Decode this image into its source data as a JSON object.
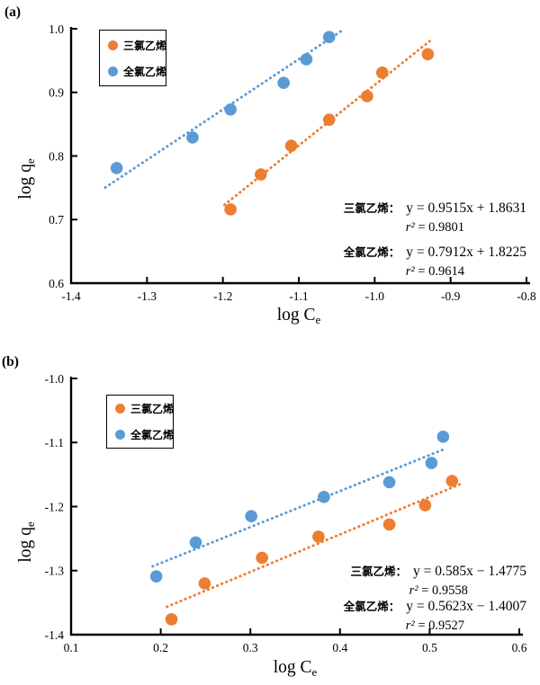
{
  "figure": {
    "background": "#ffffff",
    "series_colors": {
      "trichloroethylene": "#ED7D31",
      "perchloroethylene": "#5B9BD5"
    }
  },
  "chart_data": [
    {
      "panel_label": "(a)",
      "type": "scatter",
      "xlabel": {
        "main": "log C",
        "sub": "e"
      },
      "ylabel": {
        "main": "log q",
        "sub": "e"
      },
      "xlim": [
        -1.4,
        -0.8
      ],
      "ylim": [
        0.6,
        1.0
      ],
      "xticks": [
        "-1.4",
        "-1.3",
        "-1.2",
        "-1.1",
        "-1.0",
        "-0.9",
        "-0.8"
      ],
      "yticks": [
        "1.0",
        "0.9",
        "0.8",
        "0.7",
        "0.6"
      ],
      "grid": false,
      "legend_position": "upper-left-inside",
      "series": [
        {
          "name": "三氯乙烯",
          "color": "#ED7D31",
          "points": [
            [
              -1.19,
              0.716
            ],
            [
              -1.15,
              0.771
            ],
            [
              -1.11,
              0.816
            ],
            [
              -1.06,
              0.857
            ],
            [
              -1.01,
              0.894
            ],
            [
              -0.99,
              0.931
            ],
            [
              -0.93,
              0.96
            ]
          ],
          "trend": {
            "style": "dotted",
            "slope": 0.9515,
            "intercept": 1.8631,
            "range": [
              -1.198,
              -0.927
            ]
          }
        },
        {
          "name": "全氯乙烯",
          "color": "#5B9BD5",
          "points": [
            [
              -1.34,
              0.781
            ],
            [
              -1.24,
              0.829
            ],
            [
              -1.19,
              0.873
            ],
            [
              -1.12,
              0.915
            ],
            [
              -1.09,
              0.952
            ],
            [
              -1.06,
              0.987
            ]
          ],
          "trend": {
            "style": "dotted",
            "slope": 0.7912,
            "intercept": 1.8225,
            "range": [
              -1.355,
              -1.04
            ]
          }
        }
      ],
      "legend": [
        {
          "label": "三氯乙烯",
          "color": "#ED7D31"
        },
        {
          "label": "全氯乙烯",
          "color": "#5B9BD5"
        }
      ],
      "annotations": [
        {
          "prefix": "三氯乙烯：",
          "equation": "y = 0.9515x + 1.8631",
          "r2_label": "r²",
          "r2_value": "= 0.9801"
        },
        {
          "prefix": "全氯乙烯：",
          "equation": "y = 0.7912x + 1.8225",
          "r2_label": "r²",
          "r2_value": "= 0.9614"
        }
      ]
    },
    {
      "panel_label": "(b)",
      "type": "scatter",
      "xlabel": {
        "main": "log C",
        "sub": "e"
      },
      "ylabel": {
        "main": "log q",
        "sub": "e"
      },
      "xlim": [
        0.1,
        0.6
      ],
      "ylim": [
        -1.4,
        -1.0
      ],
      "xticks": [
        "0.1",
        "0.2",
        "0.3",
        "0.4",
        "0.5",
        "0.6"
      ],
      "yticks": [
        "-1.0",
        "-1.1",
        "-1.2",
        "-1.3",
        "-1.4"
      ],
      "grid": false,
      "legend_position": "upper-left-inside",
      "series": [
        {
          "name": "三氯乙烯",
          "color": "#ED7D31",
          "points": [
            [
              0.212,
              -1.376
            ],
            [
              0.249,
              -1.32
            ],
            [
              0.313,
              -1.28
            ],
            [
              0.376,
              -1.247
            ],
            [
              0.455,
              -1.228
            ],
            [
              0.495,
              -1.198
            ],
            [
              0.525,
              -1.16
            ]
          ],
          "trend": {
            "style": "dotted",
            "slope": 0.585,
            "intercept": -1.4775,
            "range": [
              0.207,
              0.536
            ]
          }
        },
        {
          "name": "全氯乙烯",
          "color": "#5B9BD5",
          "points": [
            [
              0.195,
              -1.309
            ],
            [
              0.239,
              -1.256
            ],
            [
              0.301,
              -1.215
            ],
            [
              0.382,
              -1.185
            ],
            [
              0.455,
              -1.162
            ],
            [
              0.502,
              -1.132
            ],
            [
              0.515,
              -1.091
            ]
          ],
          "trend": {
            "style": "dotted",
            "slope": 0.5623,
            "intercept": -1.4007,
            "range": [
              0.191,
              0.517
            ]
          }
        }
      ],
      "legend": [
        {
          "label": "三氯乙烯",
          "color": "#ED7D31"
        },
        {
          "label": "全氯乙烯",
          "color": "#5B9BD5"
        }
      ],
      "annotations": [
        {
          "prefix": "三氯乙烯：",
          "equation": "y = 0.585x − 1.4775",
          "r2_label": "r²",
          "r2_value": "= 0.9558"
        },
        {
          "prefix": "全氯乙烯：",
          "equation": "y = 0.5623x − 1.4007",
          "r2_label": "r²",
          "r2_value": "= 0.9527"
        }
      ]
    }
  ]
}
